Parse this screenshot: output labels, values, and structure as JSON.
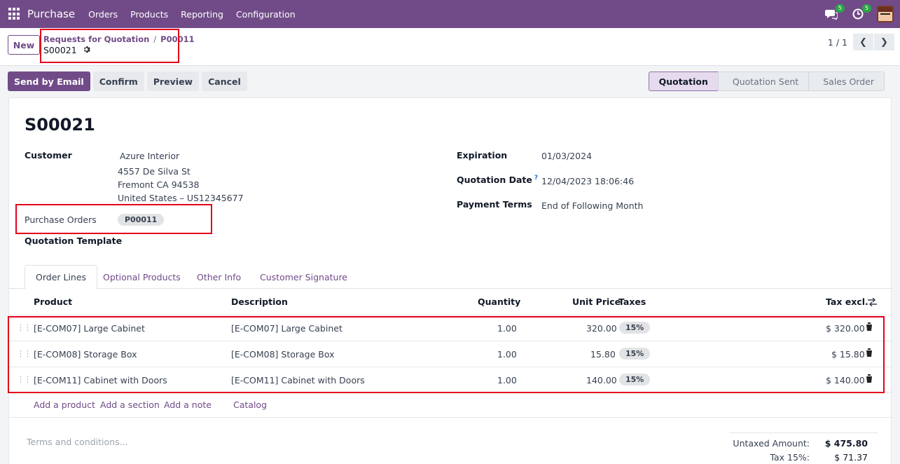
{
  "nav": {
    "brand": "Purchase",
    "menu": [
      "Orders",
      "Products",
      "Reporting",
      "Configuration"
    ],
    "messages_count": "5",
    "activities_count": "5"
  },
  "control": {
    "new_label": "New",
    "breadcrumb_parent": "Requests for Quotation",
    "breadcrumb_sep": "/",
    "breadcrumb_po": "P00011",
    "record_name": "S00021",
    "pager_value": "1 / 1"
  },
  "actions": [
    "Send by Email",
    "Confirm",
    "Preview",
    "Cancel"
  ],
  "stages": [
    {
      "label": "Quotation",
      "active": true
    },
    {
      "label": "Quotation Sent",
      "active": false
    },
    {
      "label": "Sales Order",
      "active": false
    }
  ],
  "form": {
    "title": "S00021",
    "customer_label": "Customer",
    "customer_name": "Azure Interior",
    "customer_address": [
      "4557 De Silva St",
      "Fremont CA 94538",
      "United States – US12345677"
    ],
    "purchase_orders_label": "Purchase Orders",
    "purchase_orders_tag": "P00011",
    "quotation_template_label": "Quotation Template",
    "expiration_label": "Expiration",
    "expiration_value": "01/03/2024",
    "quotation_date_label": "Quotation Date",
    "quotation_date_help": "?",
    "quotation_date_value": "12/04/2023 18:06:46",
    "payment_terms_label": "Payment Terms",
    "payment_terms_value": "End of Following Month"
  },
  "tabs": [
    "Order Lines",
    "Optional Products",
    "Other Info",
    "Customer Signature"
  ],
  "table": {
    "headers": {
      "product": "Product",
      "description": "Description",
      "quantity": "Quantity",
      "unit_price": "Unit Price",
      "taxes": "Taxes",
      "tax_excl": "Tax excl."
    },
    "rows": [
      {
        "product": "[E-COM07] Large Cabinet",
        "description": "[E-COM07] Large Cabinet",
        "quantity": "1.00",
        "unit_price": "320.00",
        "tax": "15%",
        "subtotal": "$ 320.00"
      },
      {
        "product": "[E-COM08] Storage Box",
        "description": "[E-COM08] Storage Box",
        "quantity": "1.00",
        "unit_price": "15.80",
        "tax": "15%",
        "subtotal": "$ 15.80"
      },
      {
        "product": "[E-COM11] Cabinet with Doors",
        "description": "[E-COM11] Cabinet with Doors",
        "quantity": "1.00",
        "unit_price": "140.00",
        "tax": "15%",
        "subtotal": "$ 140.00"
      }
    ],
    "add_links": [
      "Add a product",
      "Add a section",
      "Add a note",
      "Catalog"
    ]
  },
  "footer": {
    "terms_placeholder": "Terms and conditions...",
    "untaxed_label": "Untaxed Amount:",
    "untaxed_value": "$ 475.80",
    "tax_label": "Tax 15%:",
    "tax_value": "$ 71.37"
  },
  "colors": {
    "brand": "#714b88",
    "highlight": "#e3001b"
  }
}
